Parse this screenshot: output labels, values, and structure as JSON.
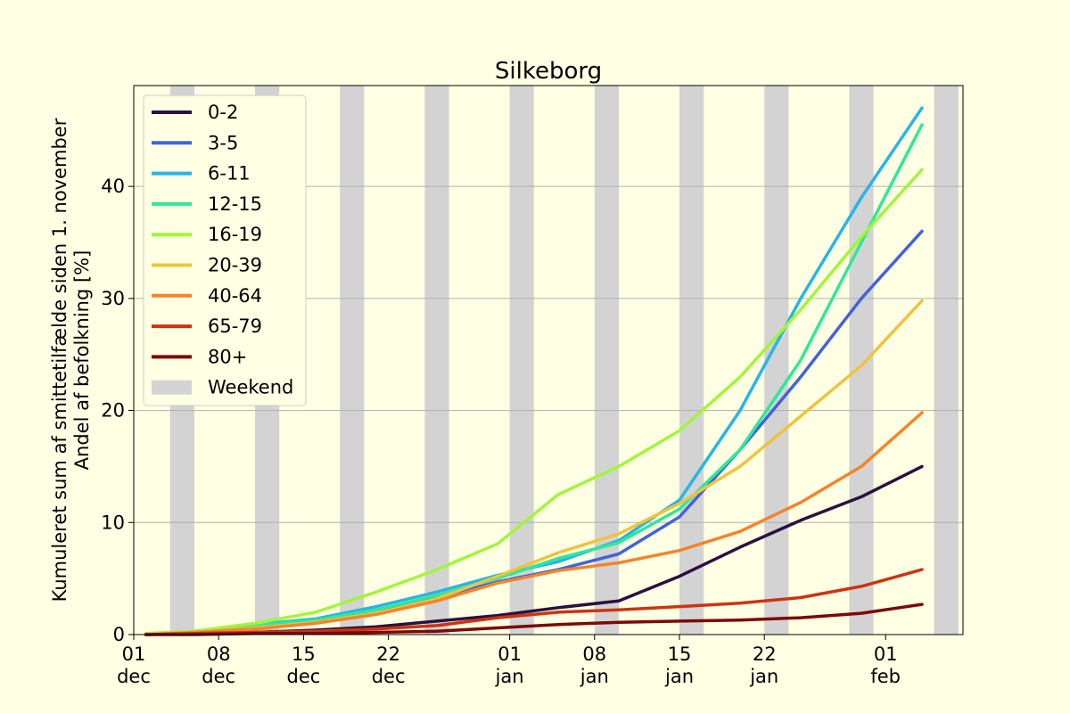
{
  "chart_data": {
    "type": "line",
    "title": "Silkeborg",
    "ylabel_line1": "Kumuleret sum af smittetilfælde siden 1. november",
    "ylabel_line2": "Andel af befolkning [%]",
    "xlabel": "",
    "ylim": [
      0,
      49
    ],
    "yticks": [
      0,
      10,
      20,
      30,
      40
    ],
    "grid": "horizontal",
    "legend_position": "top-left",
    "xticks": [
      {
        "day": 0,
        "line1": "01",
        "line2": "dec"
      },
      {
        "day": 7,
        "line1": "08",
        "line2": "dec"
      },
      {
        "day": 14,
        "line1": "15",
        "line2": "dec"
      },
      {
        "day": 21,
        "line1": "22",
        "line2": "dec"
      },
      {
        "day": 31,
        "line1": "01",
        "line2": "jan"
      },
      {
        "day": 38,
        "line1": "08",
        "line2": "jan"
      },
      {
        "day": 45,
        "line1": "15",
        "line2": "jan"
      },
      {
        "day": 52,
        "line1": "22",
        "line2": "jan"
      },
      {
        "day": 62,
        "line1": "01",
        "line2": "feb"
      }
    ],
    "weekend_label": "Weekend",
    "weekends": [
      3,
      10,
      17,
      24,
      31,
      38,
      45,
      52,
      59,
      66
    ],
    "x": [
      1,
      5,
      10,
      15,
      20,
      25,
      30,
      35,
      40,
      45,
      50,
      55,
      60,
      65
    ],
    "series": [
      {
        "name": "0-2",
        "color": "#2a1140",
        "values": [
          0.0,
          0.1,
          0.2,
          0.4,
          0.7,
          1.2,
          1.7,
          2.4,
          3.0,
          5.2,
          7.8,
          10.2,
          12.3,
          15.0
        ]
      },
      {
        "name": "3-5",
        "color": "#4462dc",
        "values": [
          0.0,
          0.2,
          0.7,
          1.2,
          2.2,
          3.3,
          4.7,
          5.8,
          7.2,
          10.5,
          16.5,
          23.0,
          30.0,
          36.0
        ]
      },
      {
        "name": "6-11",
        "color": "#27b5e6",
        "values": [
          0.0,
          0.3,
          0.9,
          1.4,
          2.5,
          3.8,
          5.3,
          6.5,
          8.4,
          12.0,
          20.0,
          30.0,
          39.0,
          47.0
        ]
      },
      {
        "name": "12-15",
        "color": "#2ee89a",
        "values": [
          0.0,
          0.2,
          0.8,
          1.3,
          2.2,
          3.5,
          5.0,
          6.8,
          8.2,
          11.2,
          16.5,
          24.5,
          35.0,
          45.5
        ]
      },
      {
        "name": "16-19",
        "color": "#a3f53a",
        "values": [
          0.1,
          0.3,
          1.0,
          2.0,
          3.8,
          5.8,
          8.1,
          12.5,
          15.0,
          18.2,
          23.0,
          29.0,
          35.5,
          41.5
        ]
      },
      {
        "name": "20-39",
        "color": "#eec43c",
        "values": [
          0.0,
          0.2,
          0.6,
          1.1,
          1.9,
          3.2,
          5.2,
          7.3,
          9.0,
          11.7,
          15.0,
          19.5,
          24.0,
          29.8
        ]
      },
      {
        "name": "40-64",
        "color": "#f5842a",
        "values": [
          0.0,
          0.2,
          0.5,
          1.0,
          1.8,
          3.0,
          4.6,
          5.7,
          6.4,
          7.5,
          9.2,
          11.8,
          15.0,
          19.8
        ]
      },
      {
        "name": "65-79",
        "color": "#cc3410",
        "values": [
          0.0,
          0.1,
          0.2,
          0.3,
          0.5,
          0.8,
          1.5,
          2.0,
          2.2,
          2.5,
          2.8,
          3.3,
          4.3,
          5.8
        ]
      },
      {
        "name": "80+",
        "color": "#7a0a08",
        "values": [
          0.0,
          0.0,
          0.1,
          0.1,
          0.2,
          0.3,
          0.6,
          0.9,
          1.1,
          1.2,
          1.3,
          1.5,
          1.9,
          2.7
        ]
      }
    ]
  }
}
